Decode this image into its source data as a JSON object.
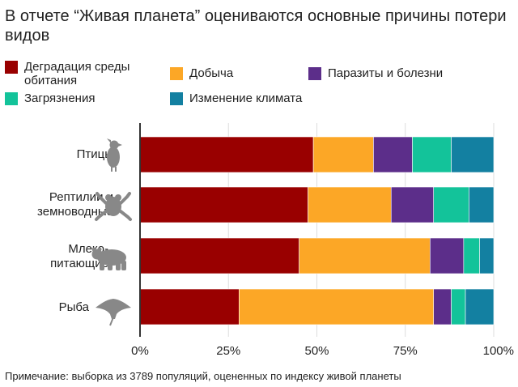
{
  "title": "В отчете “Живая планета” оцениваются основные причины потери видов",
  "legend": [
    {
      "label": "Деградация среды\nобитания",
      "color": "#990000",
      "icon": "swatch"
    },
    {
      "label": "Добыча",
      "color": "#fca726",
      "icon": "swatch"
    },
    {
      "label": "Паразиты и болезни",
      "color": "#5c2e8a",
      "icon": "swatch"
    },
    {
      "label": "Загрязнения",
      "color": "#13c39a",
      "icon": "swatch"
    },
    {
      "label": "Изменение климата",
      "color": "#1380a1",
      "icon": "swatch"
    }
  ],
  "categories": [
    {
      "label": "Птицы",
      "icon": "bird-icon"
    },
    {
      "label": "Рептилии и\nземноводные",
      "icon": "frog-icon"
    },
    {
      "label": "Млеко-\nпитающие",
      "icon": "bear-icon"
    },
    {
      "label": "Рыба",
      "icon": "manta-ray-icon"
    }
  ],
  "note": "Примечание: выборка из 3789 популяций, оцененных по индексу живой планеты",
  "chart_data": {
    "type": "bar",
    "orientation": "horizontal",
    "stacked": true,
    "categories": [
      "Птицы",
      "Рептилии и земноводные",
      "Млеко-питающие",
      "Рыба"
    ],
    "series": [
      {
        "name": "Деградация среды обитания",
        "color": "#990000",
        "values": [
          49,
          47.5,
          45,
          28
        ]
      },
      {
        "name": "Добыча",
        "color": "#fca726",
        "values": [
          17,
          23.5,
          37,
          55
        ]
      },
      {
        "name": "Паразиты и болезни",
        "color": "#5c2e8a",
        "values": [
          11,
          12,
          9.5,
          5
        ]
      },
      {
        "name": "Загрязнения",
        "color": "#13c39a",
        "values": [
          11,
          10,
          4.5,
          4
        ]
      },
      {
        "name": "Изменение климата",
        "color": "#1380a1",
        "values": [
          12,
          7,
          4,
          8
        ]
      }
    ],
    "xlim": [
      0,
      100
    ],
    "xticks": [
      "0%",
      "25%",
      "50%",
      "75%",
      "100%"
    ],
    "grid": true,
    "legend_position": "top"
  }
}
